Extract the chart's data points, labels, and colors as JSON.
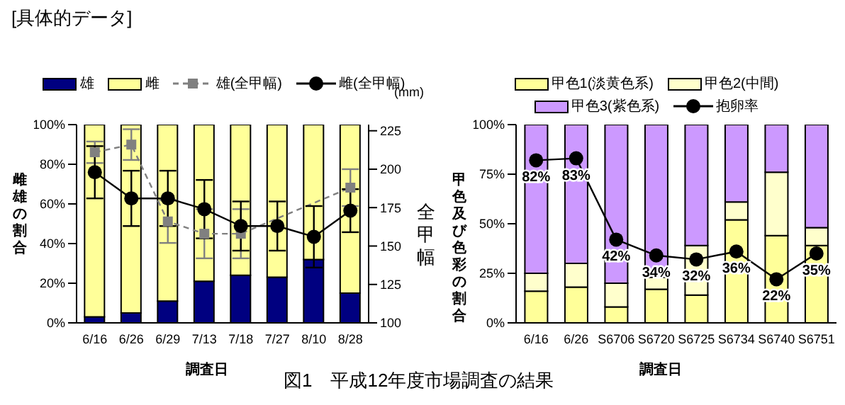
{
  "chart_data": [
    {
      "type": "bar",
      "stacked": true,
      "annotations": [
        "[具体的データ]",
        "図1　平成12年度市場調査の結果",
        "(mm)"
      ],
      "xlabel": "調査日",
      "ylabel": "雌雄の割合",
      "y2label": "全甲幅",
      "categories": [
        "6/16",
        "6/26",
        "6/29",
        "7/13",
        "7/18",
        "7/27",
        "8/10",
        "8/28"
      ],
      "legend": "top",
      "grid": false,
      "series": [
        {
          "name": "雄",
          "color": "#000080",
          "values": [
            3,
            5,
            11,
            21,
            24,
            23,
            32,
            15
          ]
        },
        {
          "name": "雌",
          "color": "#ffff99",
          "values": [
            97,
            95,
            89,
            79,
            76,
            77,
            68,
            85
          ]
        },
        {
          "name": "雄(全甲幅)",
          "type": "line",
          "axis": "y2",
          "color": "#808080",
          "line_style": "dashed",
          "marker": "square",
          "values": [
            211,
            216,
            166,
            158,
            158,
            null,
            null,
            188
          ],
          "errors": [
            7,
            10,
            14,
            16,
            16,
            null,
            null,
            12
          ]
        },
        {
          "name": "雌(全甲幅)",
          "type": "line",
          "axis": "y2",
          "color": "#000000",
          "line_style": "solid",
          "marker": "circle",
          "values": [
            198,
            181,
            181,
            174,
            163,
            163,
            156,
            173
          ],
          "errors": [
            17,
            18,
            18,
            19,
            16,
            16,
            20,
            14
          ]
        }
      ],
      "ylim": [
        0,
        100
      ],
      "yticks": [
        {
          "value": 0,
          "label": "0%"
        },
        {
          "value": 20,
          "label": "20%"
        },
        {
          "value": 40,
          "label": "40%"
        },
        {
          "value": 60,
          "label": "60%"
        },
        {
          "value": 80,
          "label": "80%"
        },
        {
          "value": 100,
          "label": "100%"
        }
      ],
      "y2lim": [
        100,
        229
      ],
      "y2ticks": [
        100,
        125,
        150,
        175,
        200,
        225
      ]
    },
    {
      "type": "bar",
      "stacked": true,
      "xlabel": "調査日",
      "ylabel": "甲色及び色彩の割合",
      "categories": [
        "6/16",
        "6/26",
        "S6706",
        "S6720",
        "S6725",
        "S6734",
        "S6740",
        "S6751"
      ],
      "legend": "top",
      "grid": false,
      "series": [
        {
          "name": "甲色1(淡黄色系)",
          "color": "#ffff99",
          "values": [
            16,
            18,
            8,
            17,
            14,
            52,
            44,
            39
          ]
        },
        {
          "name": "甲色2(中間)",
          "color": "#ffffcc",
          "values": [
            9,
            12,
            12,
            6,
            25,
            9,
            32,
            9
          ]
        },
        {
          "name": "甲色3(紫色系)",
          "color": "#cc99ff",
          "values": [
            75,
            70,
            80,
            77,
            61,
            39,
            24,
            52
          ]
        },
        {
          "name": "抱卵率",
          "type": "line",
          "color": "#000000",
          "line_style": "solid",
          "marker": "circle",
          "values": [
            82,
            83,
            42,
            34,
            32,
            36,
            22,
            35
          ],
          "value_labels": [
            "82%",
            "83%",
            "42%",
            "34%",
            "32%",
            "36%",
            "22%",
            "35%"
          ]
        }
      ],
      "ylim": [
        0,
        100
      ],
      "yticks": [
        {
          "value": 0,
          "label": "0%"
        },
        {
          "value": 25,
          "label": "25%"
        },
        {
          "value": 50,
          "label": "50%"
        },
        {
          "value": 75,
          "label": "75%"
        },
        {
          "value": 100,
          "label": "100%"
        }
      ]
    }
  ]
}
